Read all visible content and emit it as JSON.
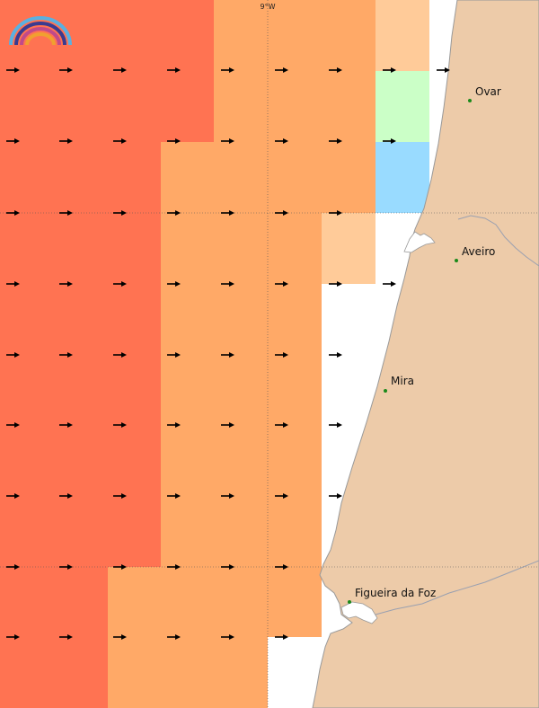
{
  "map": {
    "grid_label": "9°W",
    "cities": [
      {
        "name": "Ovar"
      },
      {
        "name": "Aveiro"
      },
      {
        "name": "Mira"
      },
      {
        "name": "Figueira da Foz"
      }
    ],
    "colors": {
      "red": "#ff7352",
      "orange": "#ffa967",
      "light_orange": "#ffcb99",
      "green": "#cbffc7",
      "blue": "#99dbff",
      "land": "#edcba9",
      "coast": "#999999",
      "arrow": "#000000",
      "city_dot": "#1a8a1a"
    },
    "logo": {
      "name": "logo-icon"
    }
  }
}
